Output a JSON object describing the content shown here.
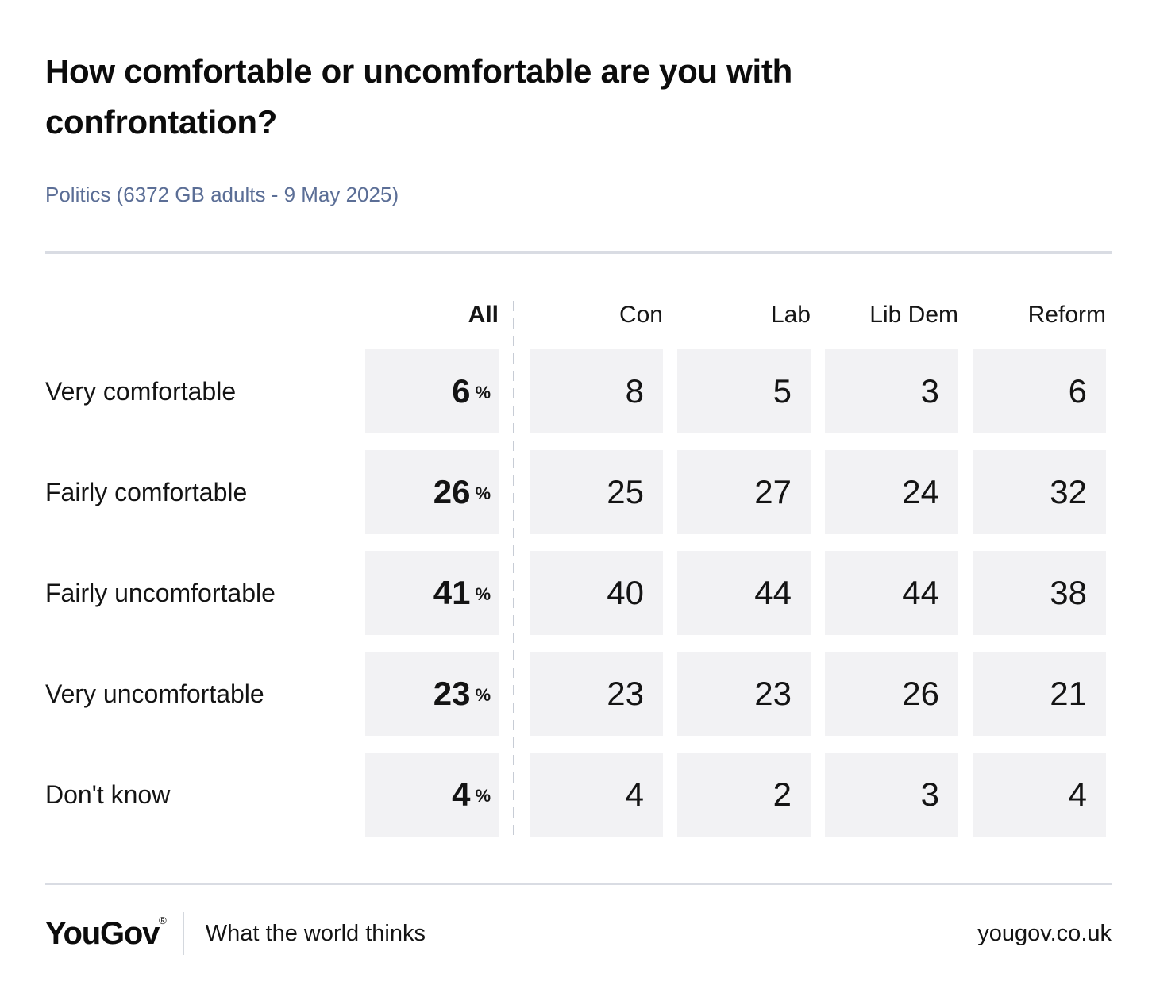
{
  "page": {
    "title_line1": "How comfortable or uncomfortable are you with",
    "title_line2": "confrontation?",
    "subtitle": "Politics (6372 GB adults - 9 May 2025)"
  },
  "table": {
    "all_label": "All",
    "percent_sign": "%",
    "party_headers": [
      "Con",
      "Lab",
      "Lib Dem",
      "Reform"
    ],
    "rows": [
      {
        "label": "Very comfortable",
        "all": "6",
        "values": [
          "8",
          "5",
          "3",
          "6"
        ]
      },
      {
        "label": "Fairly comfortable",
        "all": "26",
        "values": [
          "25",
          "27",
          "24",
          "32"
        ]
      },
      {
        "label": "Fairly uncomfortable",
        "all": "41",
        "values": [
          "40",
          "44",
          "44",
          "38"
        ]
      },
      {
        "label": "Very uncomfortable",
        "all": "23",
        "values": [
          "23",
          "23",
          "26",
          "21"
        ]
      },
      {
        "label": "Don't know",
        "all": "4",
        "values": [
          "4",
          "2",
          "3",
          "4"
        ]
      }
    ]
  },
  "chart_data": {
    "type": "table",
    "title": "How comfortable or uncomfortable are you with confrontation?",
    "subtitle": "Politics (6372 GB adults - 9 May 2025)",
    "unit": "%",
    "columns": [
      "All",
      "Con",
      "Lab",
      "Lib Dem",
      "Reform"
    ],
    "rows": [
      {
        "label": "Very comfortable",
        "values": [
          6,
          8,
          5,
          3,
          6
        ]
      },
      {
        "label": "Fairly comfortable",
        "values": [
          26,
          25,
          27,
          24,
          32
        ]
      },
      {
        "label": "Fairly uncomfortable",
        "values": [
          41,
          40,
          44,
          44,
          38
        ]
      },
      {
        "label": "Very uncomfortable",
        "values": [
          23,
          23,
          23,
          26,
          21
        ]
      },
      {
        "label": "Don't know",
        "values": [
          4,
          4,
          2,
          3,
          4
        ]
      }
    ]
  },
  "footer": {
    "logo": "YouGov",
    "registered": "®",
    "tagline": "What the world thinks",
    "site": "yougov.co.uk"
  },
  "colors": {
    "subtitle_blue": "#5b6e96",
    "cell_background": "#f2f2f4",
    "divider_gray": "#d9dce3",
    "dash_gray": "#c7ccd5",
    "text_black": "#111111"
  }
}
